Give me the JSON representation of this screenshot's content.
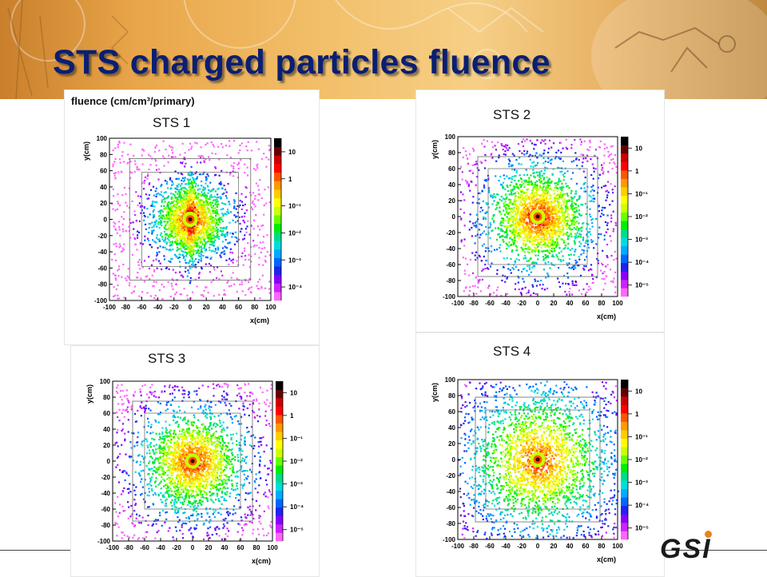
{
  "slide": {
    "title": "STS charged particles fluence",
    "logo_text": "GSI"
  },
  "colors": {
    "title": "#0a1f73",
    "header_band": "#e9a64a",
    "logo_dot": "#e8831f"
  },
  "palette": [
    "#ff66ff",
    "#cc22ff",
    "#8800ff",
    "#2222ee",
    "#0066ff",
    "#00aaff",
    "#00dddd",
    "#00dd88",
    "#00ee00",
    "#66ff00",
    "#ccff00",
    "#ffff00",
    "#ffcc00",
    "#ff9900",
    "#ff5500",
    "#ff0000",
    "#cc0000",
    "#660000",
    "#000000"
  ],
  "chart_data": [
    {
      "type": "heatmap",
      "label": "STS 1",
      "header": "fluence (cm/cm³/primary)",
      "xlabel": "x(cm)",
      "ylabel": "y(cm)",
      "xlim": [
        -100,
        100
      ],
      "ylim": [
        -100,
        100
      ],
      "x_ticks": [
        "-100",
        "-80",
        "-60",
        "-40",
        "-20",
        "0",
        "20",
        "40",
        "60",
        "80",
        "100"
      ],
      "y_ticks": [
        "100",
        "80",
        "60",
        "40",
        "20",
        "0",
        "-20",
        "-40",
        "-60",
        "-80",
        "-100"
      ],
      "colorbar_ticks": [
        "10",
        "1",
        "10⁻¹",
        "10⁻²",
        "10⁻³",
        "10⁻⁴"
      ],
      "colorbar_range_log10": [
        -4.5,
        1.5
      ],
      "peak_log10": 1.3,
      "spread_cm": 21,
      "outer_frame_cm": {
        "x": [
          -75,
          75
        ],
        "y": [
          -75,
          75
        ]
      },
      "inner_frame_cm": {
        "x": [
          -60,
          60
        ],
        "y": [
          -58,
          58
        ]
      },
      "vertical_band": true
    },
    {
      "type": "heatmap",
      "label": "STS 2",
      "xlabel": "x(cm)",
      "ylabel": "y(cm)",
      "xlim": [
        -100,
        100
      ],
      "ylim": [
        -100,
        100
      ],
      "x_ticks": [
        "-100",
        "-80",
        "-60",
        "-40",
        "-20",
        "0",
        "20",
        "40",
        "60",
        "80",
        "100"
      ],
      "y_ticks": [
        "100",
        "80",
        "60",
        "40",
        "20",
        "0",
        "-20",
        "-40",
        "-60",
        "-80",
        "-100"
      ],
      "colorbar_ticks": [
        "10",
        "1",
        "10⁻¹",
        "10⁻²",
        "10⁻³",
        "10⁻⁴",
        "10⁻⁵"
      ],
      "colorbar_range_log10": [
        -5.5,
        1.5
      ],
      "peak_log10": 1.2,
      "spread_cm": 24,
      "outer_frame_cm": {
        "x": [
          -75,
          75
        ],
        "y": [
          -75,
          75
        ]
      },
      "inner_frame_cm": {
        "x": [
          -62,
          62
        ],
        "y": [
          -60,
          60
        ]
      },
      "vertical_band": false
    },
    {
      "type": "heatmap",
      "label": "STS 3",
      "xlabel": "x(cm)",
      "ylabel": "y(cm)",
      "xlim": [
        -100,
        100
      ],
      "ylim": [
        -100,
        100
      ],
      "x_ticks": [
        "-100",
        "-80",
        "-60",
        "-40",
        "-20",
        "0",
        "20",
        "40",
        "60",
        "80",
        "100"
      ],
      "y_ticks": [
        "100",
        "80",
        "60",
        "40",
        "20",
        "0",
        "-20",
        "-40",
        "-60",
        "-80",
        "-100"
      ],
      "colorbar_ticks": [
        "10",
        "1",
        "10⁻¹",
        "10⁻²",
        "10⁻³",
        "10⁻⁴",
        "10⁻⁵"
      ],
      "colorbar_range_log10": [
        -5.5,
        1.5
      ],
      "peak_log10": 1.1,
      "spread_cm": 25,
      "outer_frame_cm": {
        "x": [
          -75,
          75
        ],
        "y": [
          -75,
          75
        ]
      },
      "inner_frame_cm": {
        "x": [
          -60,
          60
        ],
        "y": [
          -60,
          60
        ]
      },
      "vertical_band": false
    },
    {
      "type": "heatmap",
      "label": "STS 4",
      "xlabel": "x(cm)",
      "ylabel": "y(cm)",
      "xlim": [
        -100,
        100
      ],
      "ylim": [
        -100,
        100
      ],
      "x_ticks": [
        "-100",
        "-80",
        "-60",
        "-40",
        "-20",
        "0",
        "20",
        "40",
        "60",
        "80",
        "100"
      ],
      "y_ticks": [
        "100",
        "80",
        "60",
        "40",
        "20",
        "0",
        "-20",
        "-40",
        "-60",
        "-80",
        "-100"
      ],
      "colorbar_ticks": [
        "10",
        "1",
        "10⁻¹",
        "10⁻²",
        "10⁻³",
        "10⁻⁴",
        "10⁻⁵"
      ],
      "colorbar_range_log10": [
        -5.5,
        1.5
      ],
      "peak_log10": 0.9,
      "spread_cm": 34,
      "outer_frame_cm": {
        "x": [
          -78,
          78
        ],
        "y": [
          -78,
          78
        ]
      },
      "inner_frame_cm": {
        "x": [
          -65,
          65
        ],
        "y": [
          -62,
          62
        ]
      },
      "vertical_band": false
    }
  ]
}
